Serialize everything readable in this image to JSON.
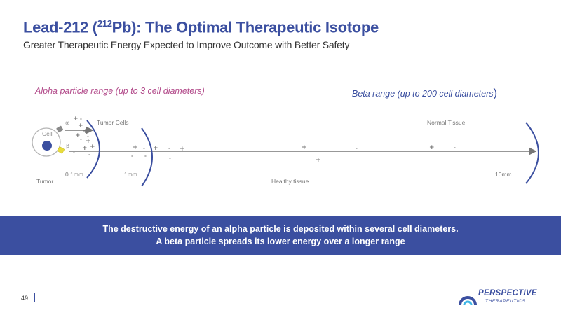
{
  "header": {
    "title_prefix": "Lead-212 (",
    "title_sup": "212",
    "title_suffix": "Pb): The Optimal Therapeutic Isotope",
    "subtitle": "Greater Therapeutic Energy Expected to Improve Outcome with Better Safety"
  },
  "ranges": {
    "alpha_label": "Alpha particle range (up to 3 cell diameters)",
    "beta_label": "Beta range (up to 200 cell diameters",
    "beta_close": ")"
  },
  "diagram": {
    "cell_label": "Cell",
    "alpha_symbol": "α",
    "beta_symbol": "β",
    "tumor_cells_label": "Tumor Cells",
    "normal_tissue_label": "Normal Tissue",
    "tumor_label": "Tumor",
    "healthy_tissue_label": "Healthy tissue",
    "distance_labels": [
      "0.1mm",
      "1mm",
      "10mm"
    ],
    "charge_plus": "+",
    "charge_minus": "-",
    "colors": {
      "alpha": "#b24a8a",
      "arc": "#3b4fa0",
      "nucleus": "#3b4fa0",
      "alpha_emitter": "#8a8a8a",
      "beta_emitter": "#e8dc3c"
    }
  },
  "banner": {
    "line1": "The destructive energy of an alpha particle is deposited within several cell diameters.",
    "line2": "A beta particle spreads its lower energy over a longer range"
  },
  "footer": {
    "page_number": "49",
    "logo_name": "PERSPECTIVE",
    "logo_tagline": "THERAPEUTICS"
  }
}
